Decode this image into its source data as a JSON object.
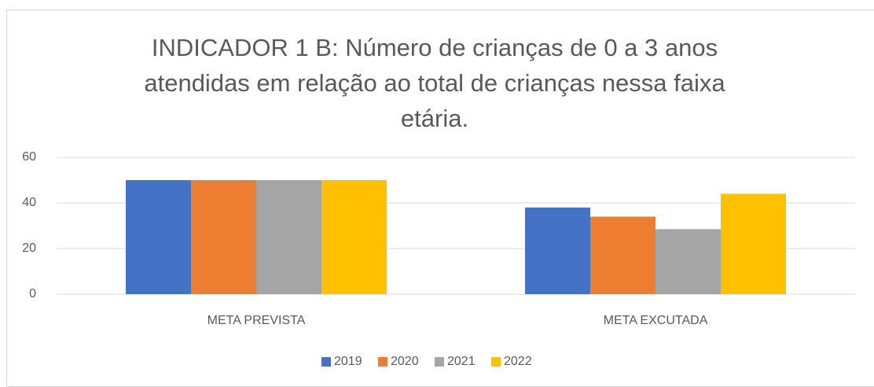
{
  "chart_data": {
    "type": "bar",
    "title": "INDICADOR 1 B: Número de crianças de 0 a 3 anos atendidas em relação ao total de crianças nessa faixa etária.",
    "categories": [
      "META PREVISTA",
      "META EXCUTADA"
    ],
    "series": [
      {
        "name": "2019",
        "color": "#4472c4",
        "values": [
          50,
          38
        ]
      },
      {
        "name": "2020",
        "color": "#ed7d31",
        "values": [
          50,
          34
        ]
      },
      {
        "name": "2021",
        "color": "#a5a5a5",
        "values": [
          50,
          28.5
        ]
      },
      {
        "name": "2022",
        "color": "#ffc000",
        "values": [
          50,
          44
        ]
      }
    ],
    "ylim": [
      0,
      60
    ],
    "yticks": [
      0,
      20,
      40,
      60
    ],
    "grid": true,
    "legend": "bottom"
  }
}
